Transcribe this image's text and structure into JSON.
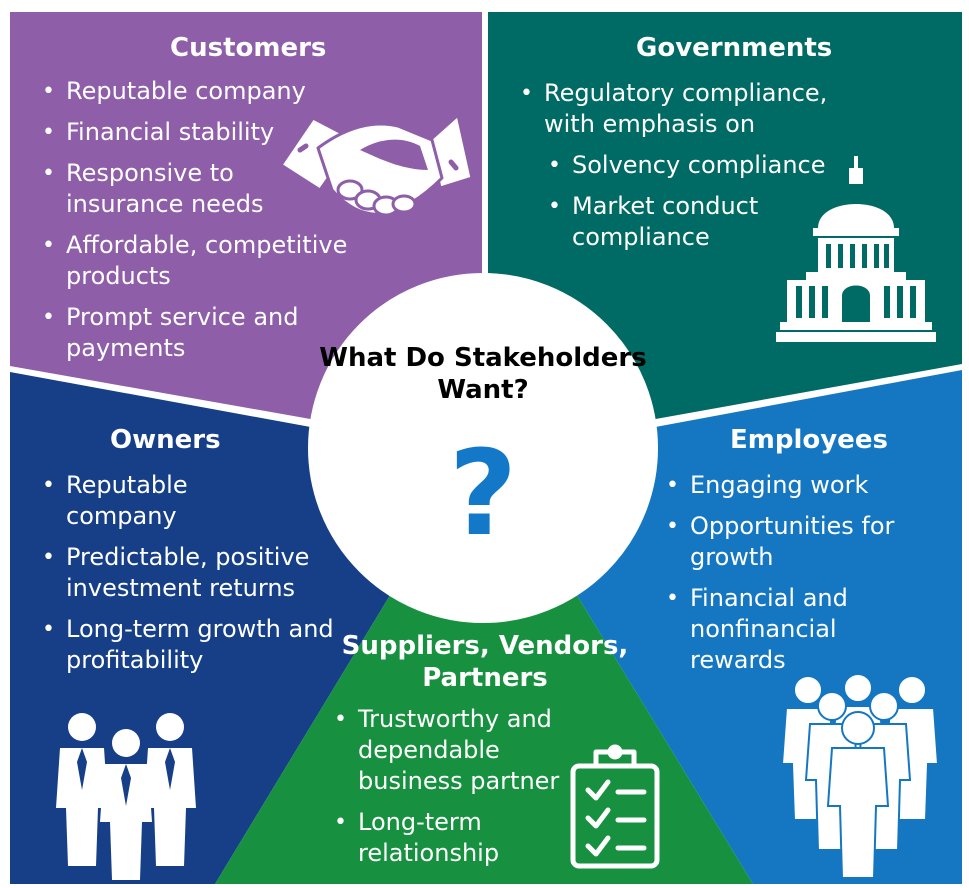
{
  "center": {
    "title": "What Do Stakeholders Want?",
    "symbol": "?"
  },
  "colors": {
    "customers": "#8e5ea8",
    "governments": "#006a64",
    "owners": "#163f88",
    "employees": "#1577c2",
    "suppliers": "#17913f",
    "question_mark": "#1478c8"
  },
  "customers": {
    "title": "Customers",
    "items": [
      "Reputable company",
      "Financial stability",
      "Responsive to insurance needs",
      "Affordable, competitive products",
      "Prompt service and payments"
    ],
    "icon": "handshake-icon"
  },
  "governments": {
    "title": "Governments",
    "items": [
      "Regulatory compliance, with emphasis on"
    ],
    "subitems": [
      "Solvency compliance",
      "Market conduct compliance"
    ],
    "icon": "capitol-building-icon"
  },
  "owners": {
    "title": "Owners",
    "items": [
      "Reputable company",
      "Predictable, positive investment returns",
      "Long-term growth and profitability"
    ],
    "icon": "group-of-three-people-icon"
  },
  "employees": {
    "title": "Employees",
    "items": [
      "Engaging work",
      "Opportunities for growth",
      "Financial and nonfinancial rewards"
    ],
    "icon": "crowd-of-people-icon"
  },
  "suppliers": {
    "title": "Suppliers, Vendors, Partners",
    "items": [
      "Trustworthy and dependable business partner",
      "Long-term relationship"
    ],
    "icon": "clipboard-checklist-icon"
  }
}
